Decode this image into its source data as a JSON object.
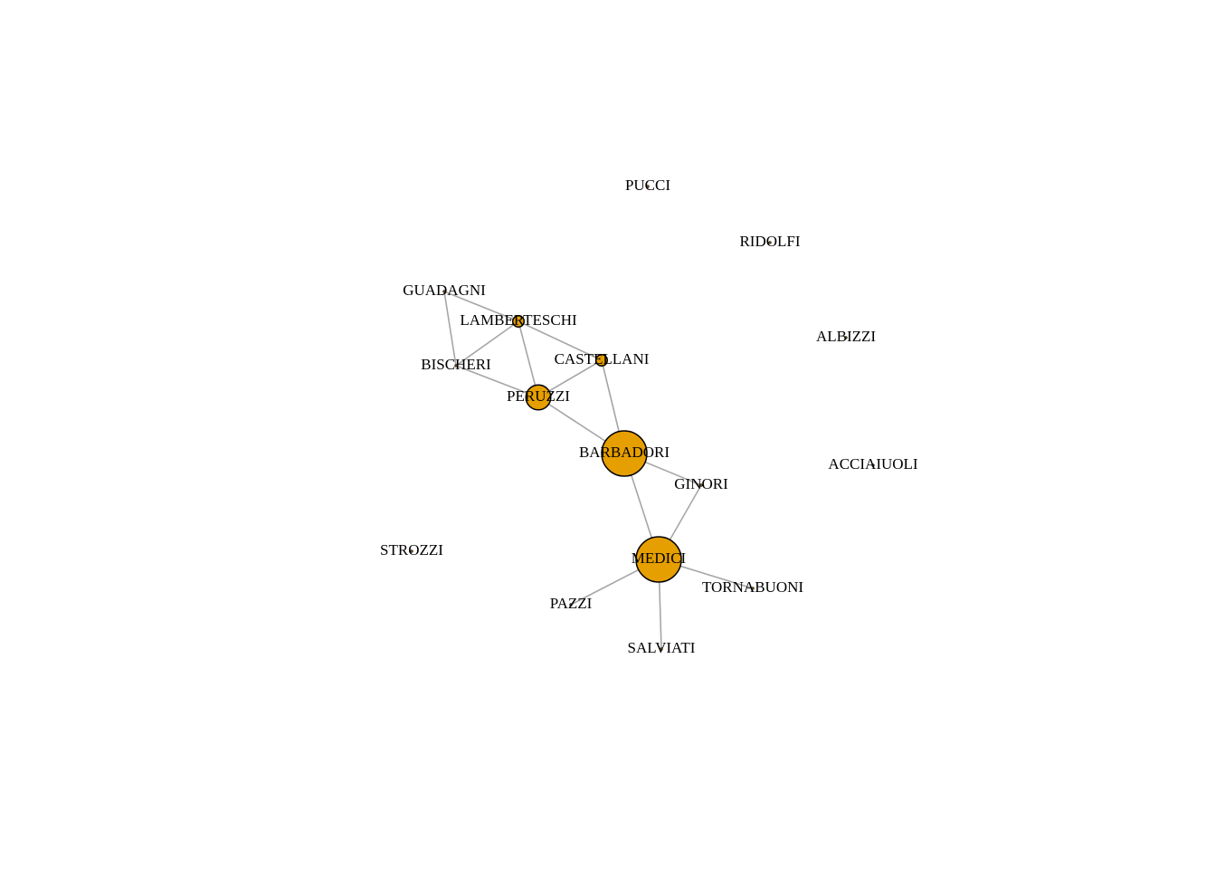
{
  "graph": {
    "node_color": "#E69F00",
    "edge_color": "#A6A6A6",
    "nodes": [
      {
        "id": "PUCCI",
        "label": "PUCCI",
        "size": 0
      },
      {
        "id": "RIDOLFI",
        "label": "RIDOLFI",
        "size": 0
      },
      {
        "id": "GUADAGNI",
        "label": "GUADAGNI",
        "size": 0
      },
      {
        "id": "LAMBERTESCHI",
        "label": "LAMBERTESCHI",
        "size": 1
      },
      {
        "id": "ALBIZZI",
        "label": "ALBIZZI",
        "size": 0
      },
      {
        "id": "CASTELLANI",
        "label": "CASTELLANI",
        "size": 1
      },
      {
        "id": "BISCHERI",
        "label": "BISCHERI",
        "size": 0
      },
      {
        "id": "PERUZZI",
        "label": "PERUZZI",
        "size": 3
      },
      {
        "id": "BARBADORI",
        "label": "BARBADORI",
        "size": 6
      },
      {
        "id": "ACCIAIUOLI",
        "label": "ACCIAIUOLI",
        "size": 0
      },
      {
        "id": "GINORI",
        "label": "GINORI",
        "size": 0
      },
      {
        "id": "STROZZI",
        "label": "STROZZI",
        "size": 0
      },
      {
        "id": "MEDICI",
        "label": "MEDICI",
        "size": 6
      },
      {
        "id": "TORNABUONI",
        "label": "TORNABUONI",
        "size": 0
      },
      {
        "id": "PAZZI",
        "label": "PAZZI",
        "size": 0
      },
      {
        "id": "SALVIATI",
        "label": "SALVIATI",
        "size": 0
      }
    ],
    "edges": [
      [
        "GUADAGNI",
        "LAMBERTESCHI"
      ],
      [
        "GUADAGNI",
        "BISCHERI"
      ],
      [
        "LAMBERTESCHI",
        "BISCHERI"
      ],
      [
        "LAMBERTESCHI",
        "PERUZZI"
      ],
      [
        "LAMBERTESCHI",
        "CASTELLANI"
      ],
      [
        "BISCHERI",
        "PERUZZI"
      ],
      [
        "CASTELLANI",
        "PERUZZI"
      ],
      [
        "CASTELLANI",
        "BARBADORI"
      ],
      [
        "PERUZZI",
        "BARBADORI"
      ],
      [
        "BARBADORI",
        "GINORI"
      ],
      [
        "BARBADORI",
        "MEDICI"
      ],
      [
        "GINORI",
        "MEDICI"
      ],
      [
        "MEDICI",
        "TORNABUONI"
      ],
      [
        "MEDICI",
        "PAZZI"
      ],
      [
        "MEDICI",
        "SALVIATI"
      ]
    ]
  }
}
